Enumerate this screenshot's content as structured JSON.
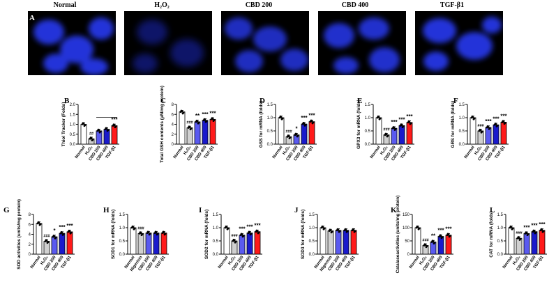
{
  "micrographs": {
    "panel_letter": "A",
    "titles": [
      "Normal",
      "H₂O₂",
      "CBD 200",
      "CBD 400",
      "TGF-β1"
    ]
  },
  "colors": {
    "normal": "#ffffff",
    "h2o2": "#d0d0d0",
    "cbd200": "#5a5af0",
    "cbd400": "#1a1acc",
    "tgf": "#ff1a1a"
  },
  "chart_data": [
    {
      "panel": "B",
      "type": "bar",
      "ylabel": "Thiol Tracker (Folds)",
      "ylim": [
        0,
        2.0
      ],
      "yticks": [
        0,
        0.5,
        1.0,
        1.5,
        2.0
      ],
      "categories": [
        "Normal",
        "H₂O₂",
        "CBD 200",
        "CBD 400",
        "TGF-β1"
      ],
      "values": [
        1.0,
        0.27,
        0.67,
        0.75,
        0.93
      ],
      "annotations": [
        "",
        "##",
        "",
        "",
        "***"
      ]
    },
    {
      "panel": "C",
      "type": "bar",
      "ylabel": "Total GSH contents (μM/mg protein)",
      "ylim": [
        0,
        8
      ],
      "yticks": [
        0,
        2,
        4,
        6,
        8
      ],
      "categories": [
        "Normal",
        "H₂O₂",
        "CBD 200",
        "CBD 400",
        "TGF-β1"
      ],
      "values": [
        6.5,
        3.3,
        4.5,
        4.8,
        5.0
      ],
      "annotations": [
        "",
        "###",
        "**",
        "***",
        "***"
      ]
    },
    {
      "panel": "D",
      "type": "bar",
      "ylabel": "GSS for mRNA (folds)",
      "ylim": [
        0,
        1.5
      ],
      "yticks": [
        0,
        0.5,
        1.0,
        1.5
      ],
      "categories": [
        "Normal",
        "H₂O₂",
        "CBD 200",
        "CBD 400",
        "TGF-β1"
      ],
      "values": [
        1.0,
        0.28,
        0.35,
        0.76,
        0.85
      ],
      "annotations": [
        "",
        "###",
        "*",
        "***",
        "***"
      ]
    },
    {
      "panel": "E",
      "type": "bar",
      "ylabel": "GPX3 for mRNA (folds)",
      "ylim": [
        0,
        1.5
      ],
      "yticks": [
        0,
        0.5,
        1.0,
        1.5
      ],
      "categories": [
        "Normal",
        "H₂O₂",
        "CBD 200",
        "CBD 400",
        "TGF-β1"
      ],
      "values": [
        1.0,
        0.35,
        0.6,
        0.7,
        0.82
      ],
      "annotations": [
        "",
        "###",
        "***",
        "***",
        "***"
      ]
    },
    {
      "panel": "F",
      "type": "bar",
      "ylabel": "GRS for mRNA (folds)",
      "ylim": [
        0,
        1.5
      ],
      "yticks": [
        0,
        0.5,
        1.0,
        1.5
      ],
      "categories": [
        "Normal",
        "H₂O₂",
        "CBD 200",
        "CBD 400",
        "TGF-β1"
      ],
      "values": [
        1.0,
        0.5,
        0.63,
        0.73,
        0.83
      ],
      "annotations": [
        "",
        "###",
        "***",
        "***",
        "***"
      ]
    },
    {
      "panel": "G",
      "type": "bar",
      "ylabel": "SOD activities (units/mg protein)",
      "ylim": [
        0,
        8
      ],
      "yticks": [
        0,
        2,
        4,
        6,
        8
      ],
      "categories": [
        "Normal",
        "H₂O₂",
        "CBD 200",
        "CBD 400",
        "TGF-β1"
      ],
      "values": [
        6.2,
        2.6,
        3.5,
        4.2,
        4.5
      ],
      "annotations": [
        "",
        "###",
        "*",
        "***",
        "***"
      ]
    },
    {
      "panel": "H",
      "type": "bar",
      "ylabel": "SOD1 for mRNA (folds)",
      "ylim": [
        0,
        1.5
      ],
      "yticks": [
        0,
        0.5,
        1.0,
        1.5
      ],
      "categories": [
        "Normal",
        "Nigericin",
        "CBD 200",
        "CBD 400",
        "TGF-β1"
      ],
      "values": [
        1.0,
        0.78,
        0.8,
        0.8,
        0.8
      ],
      "annotations": [
        "",
        "###",
        "",
        "",
        ""
      ]
    },
    {
      "panel": "I",
      "type": "bar",
      "ylabel": "SOD2 for mRNA (folds)",
      "ylim": [
        0,
        1.5
      ],
      "yticks": [
        0,
        0.5,
        1.0,
        1.5
      ],
      "categories": [
        "Normal",
        "H₂O₂",
        "CBD 200",
        "CBD 400",
        "TGF-β1"
      ],
      "values": [
        1.0,
        0.5,
        0.72,
        0.8,
        0.85
      ],
      "annotations": [
        "",
        "###",
        "***",
        "***",
        "***"
      ]
    },
    {
      "panel": "J",
      "type": "bar",
      "ylabel": "SOD3 for mRNA (folds)",
      "ylim": [
        0,
        1.5
      ],
      "yticks": [
        0,
        0.5,
        1.0,
        1.5
      ],
      "categories": [
        "Normal",
        "Nigericin",
        "CBD 200",
        "CBD 400",
        "TGF-β1"
      ],
      "values": [
        1.0,
        0.88,
        0.9,
        0.9,
        0.9
      ],
      "annotations": [
        "",
        "",
        "",
        "",
        ""
      ]
    },
    {
      "panel": "K",
      "type": "bar",
      "ylabel": "Catalaseactivities (units/mg protein)",
      "ylim": [
        0,
        150
      ],
      "yticks": [
        0,
        50,
        100,
        150
      ],
      "categories": [
        "Normal",
        "H₂O₂",
        "CBD 200",
        "CBD 400",
        "TGF-β1"
      ],
      "values": [
        100,
        33,
        46,
        67,
        72
      ],
      "annotations": [
        "",
        "###",
        "**",
        "***",
        "***"
      ]
    },
    {
      "panel": "L",
      "type": "bar",
      "ylabel": "CAT for mRNA (folds)",
      "ylim": [
        0,
        1.5
      ],
      "yticks": [
        0,
        0.5,
        1.0,
        1.5
      ],
      "categories": [
        "Normal",
        "H₂O₂",
        "CBD 200",
        "CBD 400",
        "TGF-β1"
      ],
      "values": [
        1.0,
        0.6,
        0.78,
        0.85,
        0.9
      ],
      "annotations": [
        "",
        "###",
        "***",
        "***",
        "***"
      ]
    }
  ]
}
